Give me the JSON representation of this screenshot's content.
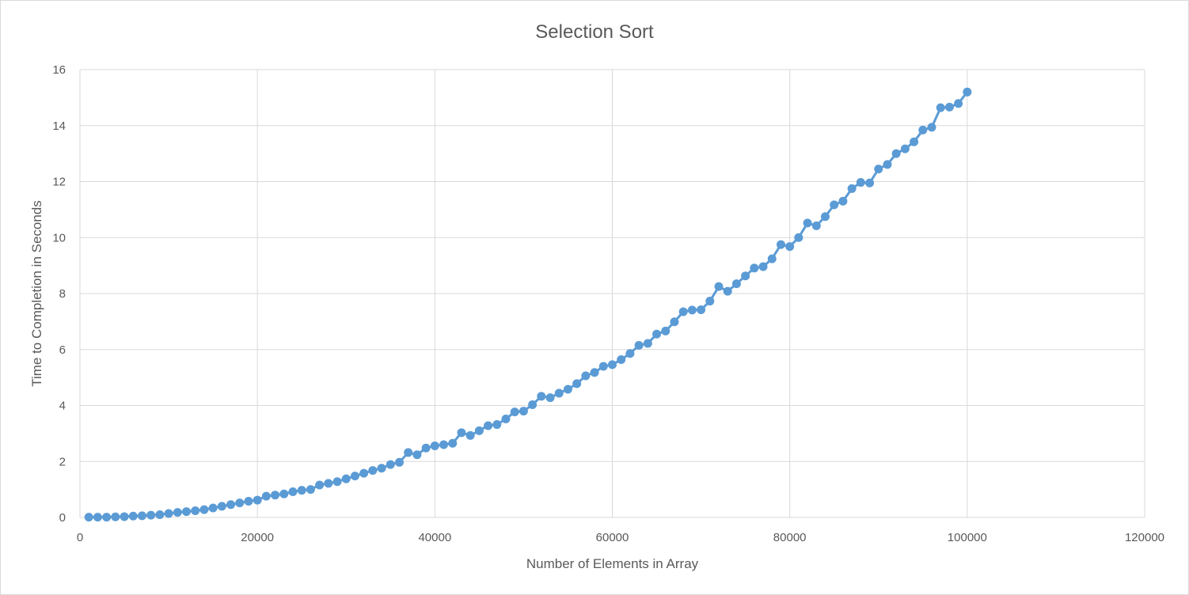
{
  "chart_data": {
    "type": "line",
    "title": "Selection Sort",
    "xlabel": "Number of Elements in Array",
    "ylabel": "Time to Completion in Seconds",
    "xlim": [
      0,
      120000
    ],
    "ylim": [
      0,
      16
    ],
    "xticks": [
      0,
      20000,
      40000,
      60000,
      80000,
      100000,
      120000
    ],
    "yticks": [
      0,
      2,
      4,
      6,
      8,
      10,
      12,
      14,
      16
    ],
    "xtick_labels": [
      "0",
      "20000",
      "40000",
      "60000",
      "80000",
      "100000",
      "120000"
    ],
    "ytick_labels": [
      "0",
      "2",
      "4",
      "6",
      "8",
      "10",
      "12",
      "14",
      "16"
    ],
    "grid": true,
    "legend": "none",
    "series_color": "#5b9bd5",
    "series": [
      {
        "markers": true,
        "x": [
          1000,
          2000,
          3000,
          4000,
          5000,
          6000,
          7000,
          8000,
          9000,
          10000,
          11000,
          12000,
          13000,
          14000,
          15000,
          16000,
          17000,
          18000,
          19000,
          20000,
          21000,
          22000,
          23000,
          24000,
          25000,
          26000,
          27000,
          28000,
          29000,
          30000,
          31000,
          32000,
          33000,
          34000,
          35000,
          36000,
          37000,
          38000,
          39000,
          40000,
          41000,
          42000,
          43000,
          44000,
          45000,
          46000,
          47000,
          48000,
          49000,
          50000,
          51000,
          52000,
          53000,
          54000,
          55000,
          56000,
          57000,
          58000,
          59000,
          60000,
          61000,
          62000,
          63000,
          64000,
          65000,
          66000,
          67000,
          68000,
          69000,
          70000,
          71000,
          72000,
          73000,
          74000,
          75000,
          76000,
          77000,
          78000,
          79000,
          80000,
          81000,
          82000,
          83000,
          84000,
          85000,
          86000,
          87000,
          88000,
          89000,
          90000,
          91000,
          92000,
          93000,
          94000,
          95000,
          96000,
          97000,
          98000,
          99000,
          100000
        ],
        "values": [
          0.01,
          0.01,
          0.01,
          0.02,
          0.03,
          0.05,
          0.06,
          0.08,
          0.1,
          0.14,
          0.18,
          0.21,
          0.24,
          0.28,
          0.34,
          0.4,
          0.46,
          0.52,
          0.58,
          0.62,
          0.76,
          0.8,
          0.84,
          0.92,
          0.97,
          1.0,
          1.16,
          1.22,
          1.28,
          1.38,
          1.48,
          1.58,
          1.68,
          1.76,
          1.89,
          1.97,
          2.32,
          2.24,
          2.48,
          2.56,
          2.6,
          2.65,
          3.03,
          2.93,
          3.1,
          3.28,
          3.32,
          3.52,
          3.77,
          3.8,
          4.03,
          4.33,
          4.28,
          4.44,
          4.58,
          4.78,
          5.06,
          5.18,
          5.4,
          5.46,
          5.64,
          5.86,
          6.15,
          6.22,
          6.55,
          6.66,
          6.99,
          7.35,
          7.41,
          7.42,
          7.73,
          8.25,
          8.08,
          8.35,
          8.63,
          8.91,
          8.96,
          9.24,
          9.75,
          9.68,
          10.0,
          10.52,
          10.42,
          10.75,
          11.17,
          11.3,
          11.75,
          11.97,
          11.95,
          12.45,
          12.61,
          13.0,
          13.17,
          13.42,
          13.84,
          13.94,
          14.64,
          14.66,
          14.79,
          15.2
        ]
      }
    ]
  }
}
